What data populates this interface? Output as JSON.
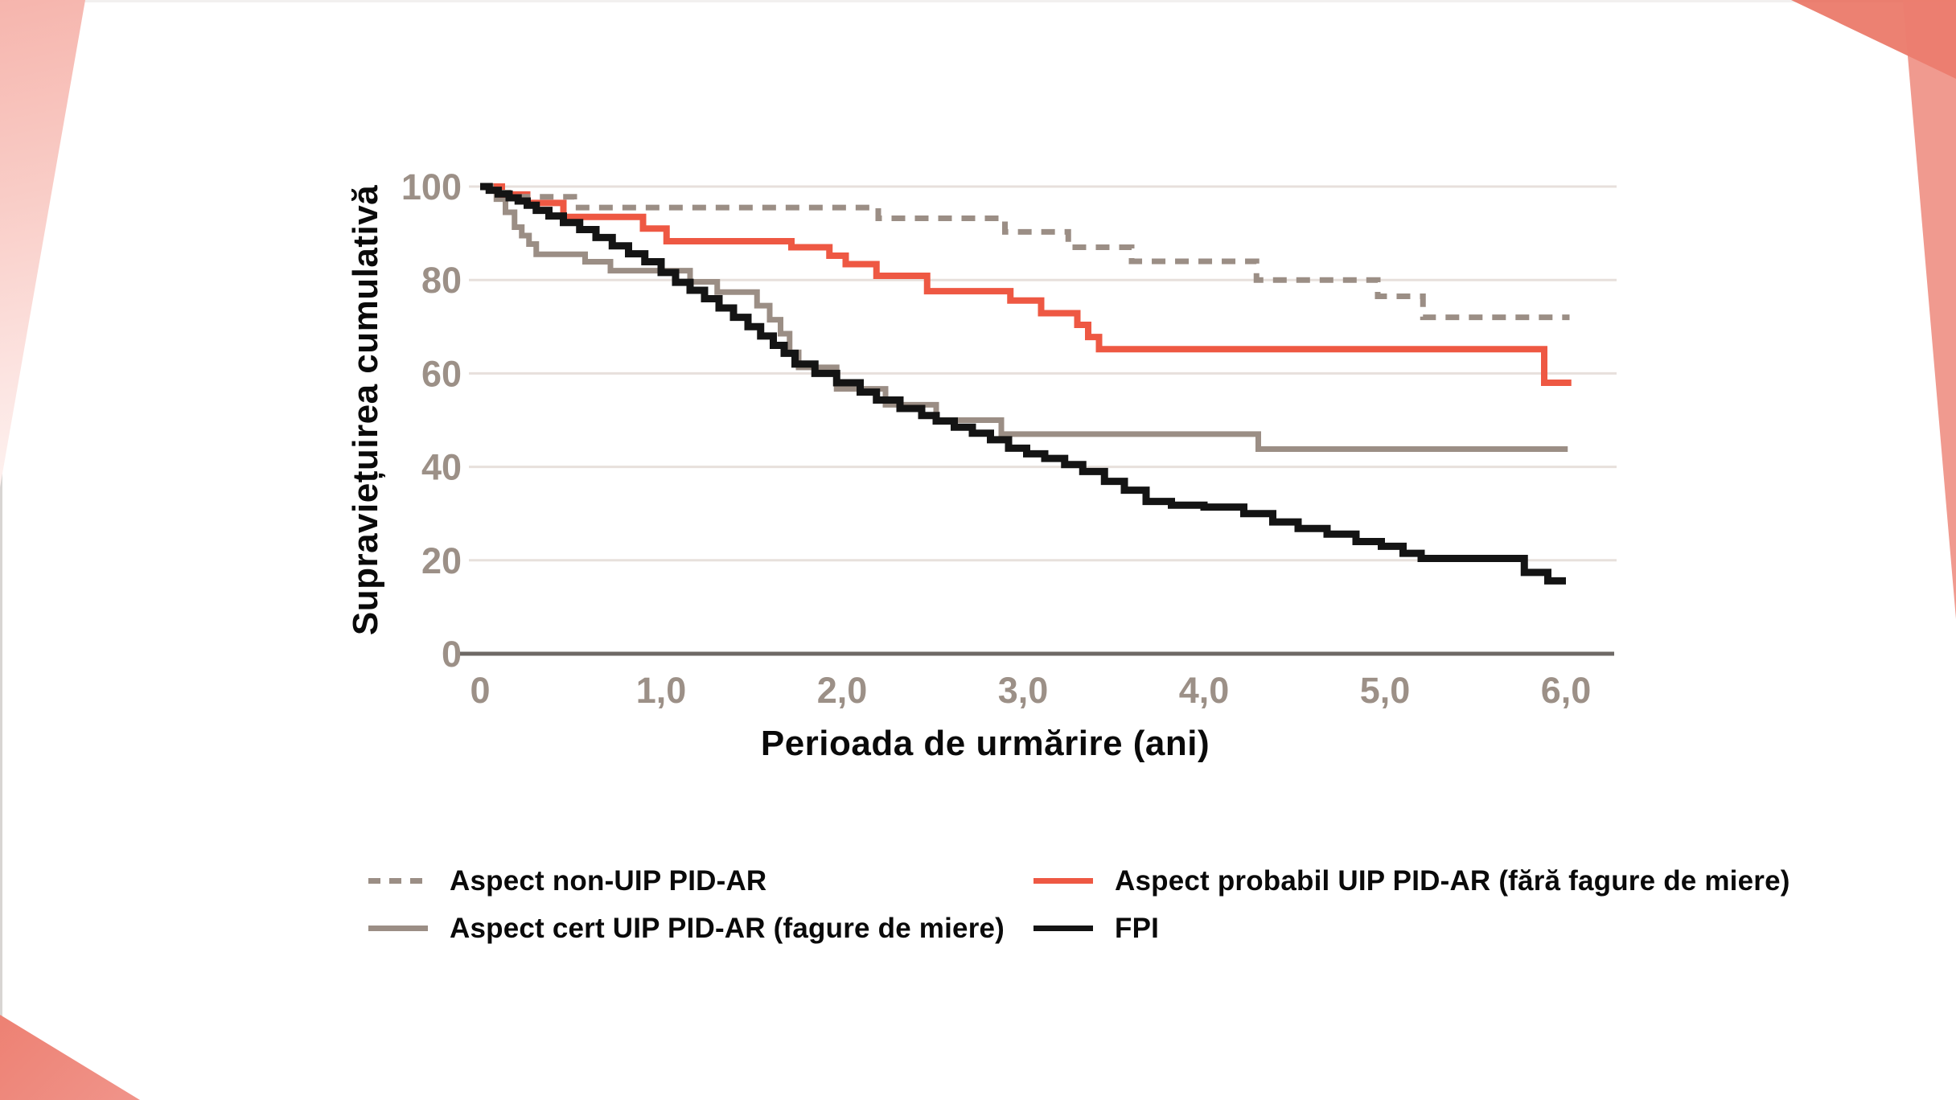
{
  "chart_data": {
    "type": "line",
    "subtype": "kaplan-meier-step-curves",
    "title": "",
    "xlabel": "Perioada de urmărire (ani)",
    "ylabel": "Supraviețuirea cumulativă",
    "xlim": [
      0,
      6.25
    ],
    "ylim": [
      0,
      100
    ],
    "grid": "horizontal-only",
    "legend_position": "bottom-two-columns",
    "x_ticks": [
      {
        "v": 0,
        "label": "0"
      },
      {
        "v": 1,
        "label": "1,0"
      },
      {
        "v": 2,
        "label": "2,0"
      },
      {
        "v": 3,
        "label": "3,0"
      },
      {
        "v": 4,
        "label": "4,0"
      },
      {
        "v": 5,
        "label": "5,0"
      },
      {
        "v": 6,
        "label": "6,0"
      }
    ],
    "y_ticks": [
      {
        "v": 0,
        "label": "0"
      },
      {
        "v": 20,
        "label": "20"
      },
      {
        "v": 40,
        "label": "40"
      },
      {
        "v": 60,
        "label": "60"
      },
      {
        "v": 80,
        "label": "80"
      },
      {
        "v": 100,
        "label": "100"
      }
    ],
    "colors": {
      "grid": "#e7e0dc",
      "axis": "#6e6965",
      "tick_label": "#9c9087",
      "text": "#0a0a0a"
    },
    "series": [
      {
        "name": "Aspect non-UIP PID-AR",
        "color": "#9b8e85",
        "dash": "dashed",
        "points": [
          [
            0,
            100
          ],
          [
            0.08,
            98.7
          ],
          [
            0.2,
            97.8
          ],
          [
            0.52,
            95.5
          ],
          [
            2.2,
            93.2
          ],
          [
            2.9,
            90.3
          ],
          [
            3.25,
            87
          ],
          [
            3.6,
            84
          ],
          [
            4.29,
            80
          ],
          [
            4.96,
            76.5
          ],
          [
            5.21,
            72
          ],
          [
            6.02,
            72
          ]
        ]
      },
      {
        "name": "Aspect cert UIP PID-AR (fagure de miere)",
        "color": "#9b8e85",
        "dash": "solid",
        "points": [
          [
            0,
            100
          ],
          [
            0.09,
            97.3
          ],
          [
            0.14,
            94.5
          ],
          [
            0.19,
            91.3
          ],
          [
            0.23,
            89.5
          ],
          [
            0.27,
            87.7
          ],
          [
            0.31,
            85.5
          ],
          [
            0.58,
            83.9
          ],
          [
            0.72,
            82
          ],
          [
            1.16,
            79.6
          ],
          [
            1.31,
            77.4
          ],
          [
            1.53,
            74.5
          ],
          [
            1.6,
            71.5
          ],
          [
            1.66,
            68.5
          ],
          [
            1.71,
            64.5
          ],
          [
            1.76,
            61.3
          ],
          [
            1.97,
            56.7
          ],
          [
            2.24,
            53.3
          ],
          [
            2.52,
            50
          ],
          [
            2.88,
            47
          ],
          [
            4.3,
            43.8
          ],
          [
            6.01,
            43.8
          ]
        ]
      },
      {
        "name": "Aspect probabil UIP PID-AR (fără fagure de miere)",
        "color": "#ee5843",
        "dash": "solid",
        "points": [
          [
            0,
            100
          ],
          [
            0.12,
            98.3
          ],
          [
            0.26,
            96.5
          ],
          [
            0.46,
            93.5
          ],
          [
            0.9,
            91
          ],
          [
            1.03,
            88.3
          ],
          [
            1.72,
            87
          ],
          [
            1.93,
            85.2
          ],
          [
            2.02,
            83.4
          ],
          [
            2.19,
            80.9
          ],
          [
            2.47,
            77.6
          ],
          [
            2.93,
            75.6
          ],
          [
            3.1,
            72.9
          ],
          [
            3.3,
            70.4
          ],
          [
            3.36,
            67.8
          ],
          [
            3.42,
            65.2
          ],
          [
            5.88,
            58
          ],
          [
            6.03,
            58
          ]
        ]
      },
      {
        "name": "FPI",
        "color": "#141414",
        "dash": "solid",
        "points": [
          [
            0,
            100
          ],
          [
            0.05,
            99.2
          ],
          [
            0.1,
            98.4
          ],
          [
            0.16,
            97.6
          ],
          [
            0.21,
            96.9
          ],
          [
            0.26,
            96
          ],
          [
            0.31,
            94.9
          ],
          [
            0.38,
            93.7
          ],
          [
            0.46,
            92.3
          ],
          [
            0.55,
            90.8
          ],
          [
            0.64,
            89.1
          ],
          [
            0.73,
            87.3
          ],
          [
            0.82,
            85.6
          ],
          [
            0.91,
            83.9
          ],
          [
            1.0,
            81.6
          ],
          [
            1.08,
            79.5
          ],
          [
            1.16,
            77.8
          ],
          [
            1.24,
            76
          ],
          [
            1.32,
            74
          ],
          [
            1.4,
            72
          ],
          [
            1.48,
            70
          ],
          [
            1.55,
            68
          ],
          [
            1.62,
            66
          ],
          [
            1.68,
            64.3
          ],
          [
            1.74,
            62
          ],
          [
            1.85,
            60
          ],
          [
            1.97,
            58
          ],
          [
            2.1,
            56
          ],
          [
            2.19,
            54.3
          ],
          [
            2.32,
            52.5
          ],
          [
            2.44,
            51
          ],
          [
            2.52,
            49.8
          ],
          [
            2.62,
            48.5
          ],
          [
            2.72,
            47.2
          ],
          [
            2.82,
            45.8
          ],
          [
            2.92,
            44
          ],
          [
            3.02,
            42.8
          ],
          [
            3.12,
            41.8
          ],
          [
            3.23,
            40.5
          ],
          [
            3.33,
            39
          ],
          [
            3.45,
            36.9
          ],
          [
            3.56,
            35
          ],
          [
            3.68,
            32.6
          ],
          [
            3.82,
            31.8
          ],
          [
            4.0,
            31.4
          ],
          [
            4.22,
            30
          ],
          [
            4.38,
            28.2
          ],
          [
            4.52,
            26.8
          ],
          [
            4.68,
            25.6
          ],
          [
            4.84,
            24
          ],
          [
            4.98,
            23
          ],
          [
            5.1,
            21.5
          ],
          [
            5.2,
            20.4
          ],
          [
            5.77,
            17.4
          ],
          [
            5.9,
            15.6
          ],
          [
            6.0,
            15.6
          ]
        ]
      }
    ]
  },
  "legend": {
    "columns": [
      {
        "series_indexes": [
          0,
          1
        ]
      },
      {
        "series_indexes": [
          2,
          3
        ]
      }
    ]
  }
}
